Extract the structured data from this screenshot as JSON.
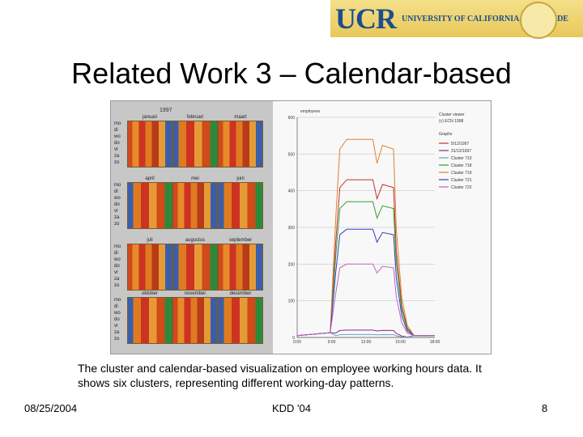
{
  "logo": {
    "short": "UCR",
    "long": "UNIVERSITY OF CALIFORNIA, RIVERSIDE"
  },
  "slide": {
    "title": "Related Work 3 – Calendar-based",
    "caption_line1": "The cluster and calendar-based visualization on employee working hours data.  It",
    "caption_line2": "shows six clusters, representing different working-day patterns.",
    "date": "08/25/2004",
    "venue": "KDD '04",
    "page": "8"
  },
  "calendar": {
    "year": "1997",
    "day_labels": [
      "mo",
      "di",
      "wo",
      "do",
      "vr",
      "za",
      "zo"
    ],
    "months": [
      "januari",
      "februari",
      "maart",
      "april",
      "mei",
      "juni",
      "juli",
      "augustus",
      "september",
      "oktober",
      "november",
      "december"
    ]
  },
  "chart_data": {
    "type": "line",
    "ylabel": "employees",
    "x_ticks": [
      "0:00",
      "9:00",
      "12:00",
      "15:00",
      "18:00"
    ],
    "ylim": [
      0,
      600
    ],
    "y_ticks": [
      0,
      100,
      200,
      300,
      400,
      500,
      600
    ],
    "legend_title": [
      "Cluster viewer",
      "(c) ECN 1998"
    ],
    "legend_heading": "Graphs",
    "legend_placement": "right",
    "series": [
      {
        "name": "5/12/1997",
        "color": "#c03030",
        "peak": 430
      },
      {
        "name": "31/12/1997",
        "color": "#8a2a8a",
        "peak": 20
      },
      {
        "name": "Cluster 710",
        "color": "#6aa0c0",
        "peak": 8
      },
      {
        "name": "Cluster 718",
        "color": "#30a030",
        "peak": 370
      },
      {
        "name": "Cluster 719",
        "color": "#e08030",
        "peak": 540
      },
      {
        "name": "Cluster 721",
        "color": "#3040c0",
        "peak": 295
      },
      {
        "name": "Cluster 722",
        "color": "#c060c0",
        "peak": 200
      }
    ]
  }
}
